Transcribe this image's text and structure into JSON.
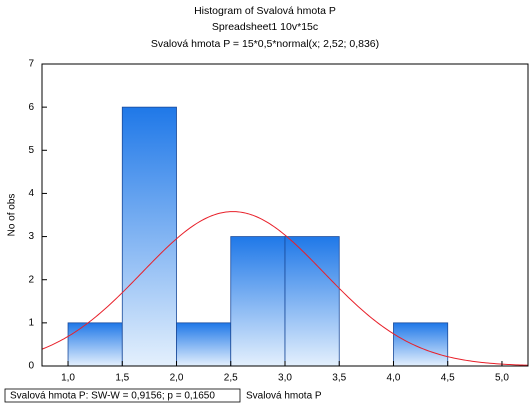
{
  "chart_data": {
    "type": "histogram",
    "title": "Histogram of Svalová hmota P",
    "subtitle": "Spreadsheet1 10v*15c",
    "formula": "Svalová hmota P = 15*0,5*normal(x; 2,52; 0,836)",
    "x_label": "Svalová hmota P",
    "y_label": "No of obs",
    "stats_label": "Svalová hmota P:  SW-W = 0,9156; p = 0,1650",
    "bins": [
      1.0,
      1.5,
      2.0,
      2.5,
      3.0,
      3.5,
      4.0,
      4.5
    ],
    "counts": [
      1,
      6,
      1,
      3,
      3,
      0,
      1
    ],
    "color": "#1f78e8",
    "normal_fit": {
      "n": 15,
      "bin_width": 0.5,
      "mean": 2.52,
      "sd": 0.836,
      "color": "#e8202a"
    },
    "xlim": [
      0.76,
      5.24
    ],
    "ylim": [
      0,
      7
    ],
    "xticks": [
      {
        "value": 1.0,
        "label": "1,0"
      },
      {
        "value": 1.5,
        "label": "1,5"
      },
      {
        "value": 2.0,
        "label": "2,0"
      },
      {
        "value": 2.5,
        "label": "2,5"
      },
      {
        "value": 3.0,
        "label": "3,0"
      },
      {
        "value": 3.5,
        "label": "3,5"
      },
      {
        "value": 4.0,
        "label": "4,0"
      },
      {
        "value": 4.5,
        "label": "4,5"
      },
      {
        "value": 5.0,
        "label": "5,0"
      }
    ],
    "yticks": [
      0,
      1,
      2,
      3,
      4,
      5,
      6,
      7
    ]
  }
}
